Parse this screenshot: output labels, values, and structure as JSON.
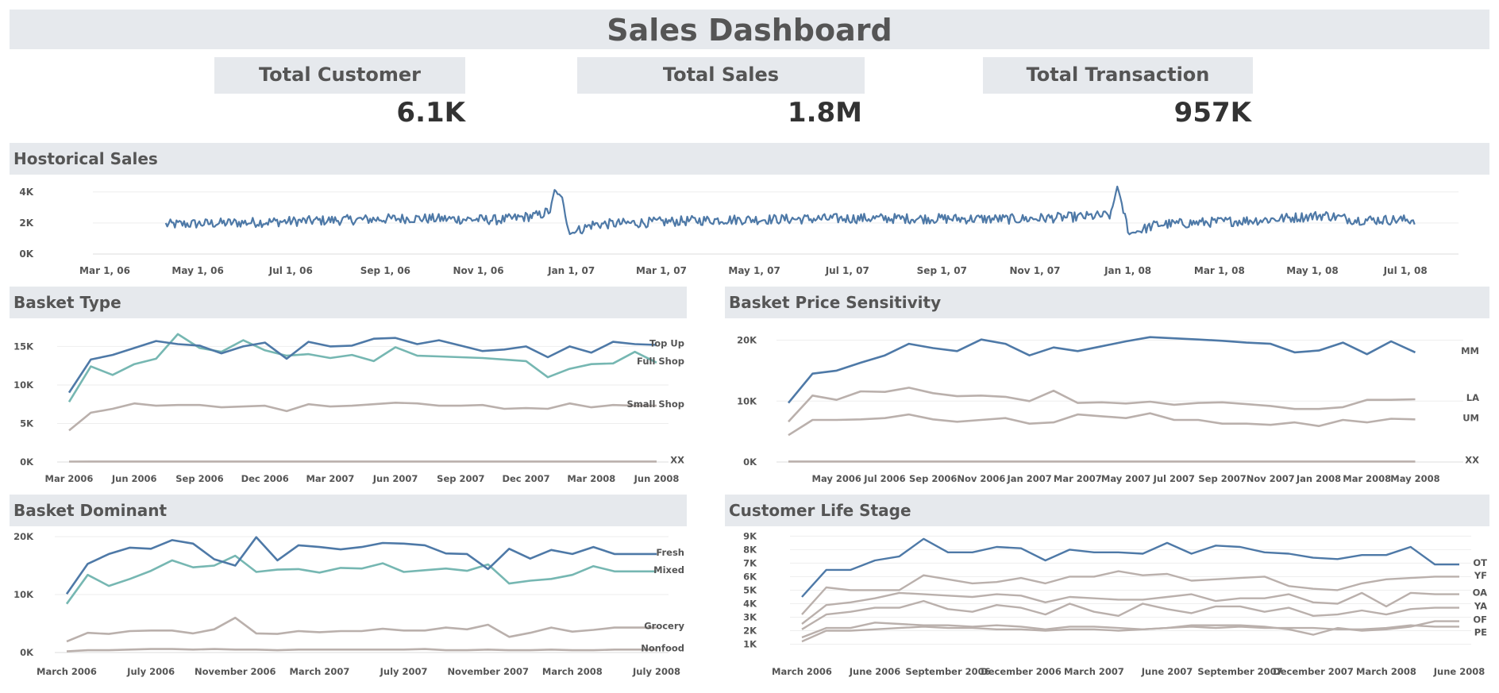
{
  "page": {
    "title": "Sales Dashboard"
  },
  "kpis": [
    {
      "label": "Total Customer",
      "value": "6.1K"
    },
    {
      "label": "Total Sales",
      "value": "1.8M"
    },
    {
      "label": "Total Transaction",
      "value": "957K"
    }
  ],
  "colors": {
    "blue": "#4e79a7",
    "teal": "#76b7b2",
    "grey": "#bab0ac",
    "band": "#e6e9ed"
  },
  "chart_data": [
    {
      "id": "historical",
      "type": "line",
      "title": "Hostorical Sales",
      "ylim": [
        0,
        4500
      ],
      "y_ticks": [
        {
          "v": 4000,
          "label": "4K"
        },
        {
          "v": 2000,
          "label": "2K"
        },
        {
          "v": 0,
          "label": "0K"
        }
      ],
      "x_ticks": [
        {
          "i": 0,
          "label": "Mar 1, 06"
        },
        {
          "i": 61,
          "label": "May 1, 06"
        },
        {
          "i": 122,
          "label": "Jul 1, 06"
        },
        {
          "i": 184,
          "label": "Sep 1, 06"
        },
        {
          "i": 245,
          "label": "Nov 1, 06"
        },
        {
          "i": 306,
          "label": "Jan 1, 07"
        },
        {
          "i": 365,
          "label": "Mar 1, 07"
        },
        {
          "i": 426,
          "label": "May 1, 07"
        },
        {
          "i": 487,
          "label": "Jul 1, 07"
        },
        {
          "i": 549,
          "label": "Sep 1, 07"
        },
        {
          "i": 610,
          "label": "Nov 1, 07"
        },
        {
          "i": 671,
          "label": "Jan 1, 08"
        },
        {
          "i": 731,
          "label": "Mar 1, 08"
        },
        {
          "i": 792,
          "label": "May 1, 08"
        },
        {
          "i": 853,
          "label": "Jul 1, 08"
        }
      ],
      "x_range": [
        0,
        880
      ],
      "series": [
        {
          "name": "Sales",
          "color": "#4e79a7",
          "start": 40,
          "count": 820,
          "keypoints": [
            [
              40,
              1900
            ],
            [
              120,
              2100
            ],
            [
              200,
              2300
            ],
            [
              260,
              2200
            ],
            [
              285,
              2500
            ],
            [
              292,
              2800
            ],
            [
              295,
              4100
            ],
            [
              300,
              3600
            ],
            [
              305,
              1300
            ],
            [
              320,
              1900
            ],
            [
              400,
              2200
            ],
            [
              500,
              2300
            ],
            [
              600,
              2250
            ],
            [
              640,
              2400
            ],
            [
              660,
              2500
            ],
            [
              664,
              4400
            ],
            [
              668,
              2800
            ],
            [
              672,
              1300
            ],
            [
              690,
              1900
            ],
            [
              760,
              2200
            ],
            [
              800,
              2500
            ],
            [
              820,
              2200
            ],
            [
              860,
              2200
            ]
          ]
        }
      ]
    },
    {
      "id": "basket-type",
      "type": "line",
      "title": "Basket Type",
      "ylim": [
        0,
        17000
      ],
      "y_ticks": [
        {
          "v": 15000,
          "label": "15K"
        },
        {
          "v": 10000,
          "label": "10K"
        },
        {
          "v": 5000,
          "label": "5K"
        },
        {
          "v": 0,
          "label": "0K"
        }
      ],
      "x_ticks": [
        {
          "i": 0,
          "label": "Mar 2006"
        },
        {
          "i": 3,
          "label": "Jun 2006"
        },
        {
          "i": 6,
          "label": "Sep 2006"
        },
        {
          "i": 9,
          "label": "Dec 2006"
        },
        {
          "i": 12,
          "label": "Mar 2007"
        },
        {
          "i": 15,
          "label": "Jun 2007"
        },
        {
          "i": 18,
          "label": "Sep 2007"
        },
        {
          "i": 21,
          "label": "Dec 2007"
        },
        {
          "i": 24,
          "label": "Mar 2008"
        },
        {
          "i": 27,
          "label": "Jun 2008"
        }
      ],
      "x_range": [
        0,
        27
      ],
      "series": [
        {
          "name": "Top Up",
          "color": "#4e79a7",
          "values": [
            9000,
            13300,
            13900,
            14800,
            15700,
            15300,
            15100,
            14100,
            15000,
            15500,
            13400,
            15600,
            15000,
            15100,
            16000,
            16100,
            15300,
            15800,
            15100,
            14400,
            14600,
            15000,
            13600,
            15000,
            14200,
            15600,
            15300,
            15200
          ]
        },
        {
          "name": "Full Shop",
          "color": "#76b7b2",
          "values": [
            7800,
            12400,
            11300,
            12700,
            13400,
            16600,
            14800,
            14300,
            15800,
            14500,
            13800,
            14000,
            13500,
            13900,
            13100,
            14900,
            13800,
            13700,
            13600,
            13500,
            13300,
            13100,
            11000,
            12100,
            12700,
            12800,
            14300,
            12900
          ]
        },
        {
          "name": "Small Shop",
          "color": "#bab0ac",
          "values": [
            4100,
            6400,
            6900,
            7600,
            7300,
            7400,
            7400,
            7100,
            7200,
            7300,
            6600,
            7500,
            7200,
            7300,
            7500,
            7700,
            7600,
            7300,
            7300,
            7400,
            6900,
            7000,
            6900,
            7600,
            7100,
            7400,
            7300,
            7300
          ]
        },
        {
          "name": "XX",
          "color": "#bab0ac",
          "values": [
            50,
            60,
            60,
            60,
            60,
            60,
            60,
            60,
            60,
            60,
            60,
            60,
            60,
            60,
            60,
            60,
            60,
            60,
            60,
            60,
            60,
            60,
            60,
            60,
            60,
            60,
            60,
            60
          ]
        }
      ]
    },
    {
      "id": "price-sensitivity",
      "type": "line",
      "title": "Basket Price Sensitivity",
      "ylim": [
        0,
        21500
      ],
      "y_ticks": [
        {
          "v": 20000,
          "label": "20K"
        },
        {
          "v": 10000,
          "label": "10K"
        },
        {
          "v": 0,
          "label": "0K"
        }
      ],
      "x_ticks": [
        {
          "i": 2,
          "label": "May 2006"
        },
        {
          "i": 4,
          "label": "Jul 2006"
        },
        {
          "i": 6,
          "label": "Sep 2006"
        },
        {
          "i": 8,
          "label": "Nov 2006"
        },
        {
          "i": 10,
          "label": "Jan 2007"
        },
        {
          "i": 12,
          "label": "Mar 2007"
        },
        {
          "i": 14,
          "label": "May 2007"
        },
        {
          "i": 16,
          "label": "Jul 2007"
        },
        {
          "i": 18,
          "label": "Sep 2007"
        },
        {
          "i": 20,
          "label": "Nov 2007"
        },
        {
          "i": 22,
          "label": "Jan 2008"
        },
        {
          "i": 24,
          "label": "Mar 2008"
        },
        {
          "i": 26,
          "label": "May 2008"
        }
      ],
      "x_range": [
        0,
        27.5
      ],
      "series": [
        {
          "name": "MM",
          "color": "#4e79a7",
          "values": [
            9700,
            14500,
            15000,
            16300,
            17500,
            19400,
            18700,
            18200,
            20100,
            19400,
            17500,
            18800,
            18200,
            19000,
            19800,
            20500,
            20300,
            20100,
            19900,
            19600,
            19400,
            18000,
            18300,
            19600,
            17700,
            19800,
            18000
          ]
        },
        {
          "name": "LA",
          "color": "#bab0ac",
          "values": [
            6600,
            10900,
            10200,
            11600,
            11500,
            12200,
            11300,
            10800,
            10900,
            10700,
            10000,
            11700,
            9700,
            9800,
            9600,
            9900,
            9400,
            9700,
            9800,
            9500,
            9200,
            8700,
            8700,
            9000,
            10200,
            10200,
            10300
          ]
        },
        {
          "name": "UM",
          "color": "#bab0ac",
          "values": [
            4400,
            6900,
            6900,
            7000,
            7200,
            7800,
            7000,
            6600,
            6900,
            7200,
            6300,
            6500,
            7800,
            7500,
            7200,
            8000,
            6900,
            6900,
            6300,
            6300,
            6100,
            6500,
            5900,
            6900,
            6500,
            7100,
            7000
          ]
        },
        {
          "name": "XX",
          "color": "#bab0ac",
          "values": [
            80,
            80,
            80,
            80,
            80,
            80,
            80,
            80,
            80,
            80,
            80,
            80,
            80,
            80,
            80,
            80,
            80,
            80,
            80,
            80,
            80,
            80,
            80,
            80,
            80,
            80,
            80
          ]
        }
      ]
    },
    {
      "id": "basket-dominant",
      "type": "line",
      "title": "Basket Dominant",
      "ylim": [
        0,
        20000
      ],
      "y_ticks": [
        {
          "v": 20000,
          "label": "20K"
        },
        {
          "v": 10000,
          "label": "10K"
        },
        {
          "v": 0,
          "label": "0K"
        }
      ],
      "x_ticks": [
        {
          "i": 0,
          "label": "March 2006"
        },
        {
          "i": 4,
          "label": "July 2006"
        },
        {
          "i": 8,
          "label": "November 2006"
        },
        {
          "i": 12,
          "label": "March 2007"
        },
        {
          "i": 16,
          "label": "July 2007"
        },
        {
          "i": 20,
          "label": "November 2007"
        },
        {
          "i": 24,
          "label": "March 2008"
        },
        {
          "i": 28,
          "label": "July 2008"
        }
      ],
      "x_range": [
        0,
        28
      ],
      "series": [
        {
          "name": "Fresh",
          "color": "#4e79a7",
          "values": [
            10100,
            15300,
            17000,
            18100,
            17900,
            19400,
            18800,
            16100,
            15000,
            19900,
            15900,
            18500,
            18200,
            17800,
            18200,
            18900,
            18800,
            18500,
            17100,
            17000,
            14400,
            17900,
            16200,
            17700,
            17000,
            18200,
            17000,
            17000,
            17000
          ]
        },
        {
          "name": "Mixed",
          "color": "#76b7b2",
          "values": [
            8400,
            13400,
            11500,
            12700,
            14100,
            15900,
            14700,
            15000,
            16700,
            13900,
            14300,
            14400,
            13800,
            14600,
            14500,
            15400,
            13900,
            14200,
            14500,
            14100,
            15200,
            11900,
            12400,
            12700,
            13400,
            14900,
            14000,
            14000,
            14000
          ]
        },
        {
          "name": "Grocery",
          "color": "#bab0ac",
          "values": [
            1900,
            3400,
            3200,
            3700,
            3800,
            3800,
            3300,
            4000,
            6000,
            3300,
            3200,
            3700,
            3500,
            3700,
            3700,
            4100,
            3800,
            3800,
            4300,
            4000,
            4800,
            2700,
            3400,
            4300,
            3600,
            3900,
            4300,
            4300,
            4300
          ]
        },
        {
          "name": "Nonfood",
          "color": "#bab0ac",
          "values": [
            200,
            400,
            400,
            500,
            600,
            600,
            500,
            600,
            500,
            500,
            400,
            500,
            500,
            500,
            500,
            500,
            500,
            600,
            400,
            400,
            500,
            400,
            400,
            500,
            400,
            400,
            500,
            500,
            500
          ]
        }
      ]
    },
    {
      "id": "life-stage",
      "type": "line",
      "title": "Customer Life Stage",
      "ylim": [
        500,
        9200
      ],
      "y_ticks": [
        {
          "v": 9000,
          "label": "9K"
        },
        {
          "v": 8000,
          "label": "8K"
        },
        {
          "v": 7000,
          "label": "7K"
        },
        {
          "v": 6000,
          "label": "6K"
        },
        {
          "v": 5000,
          "label": "5K"
        },
        {
          "v": 4000,
          "label": "4K"
        },
        {
          "v": 3000,
          "label": "3K"
        },
        {
          "v": 2000,
          "label": "2K"
        },
        {
          "v": 1000,
          "label": "1K"
        }
      ],
      "x_ticks": [
        {
          "i": 0,
          "label": "March 2006"
        },
        {
          "i": 3,
          "label": "June 2006"
        },
        {
          "i": 6,
          "label": "September 2006"
        },
        {
          "i": 9,
          "label": "December 2006"
        },
        {
          "i": 12,
          "label": "March 2007"
        },
        {
          "i": 15,
          "label": "June 2007"
        },
        {
          "i": 18,
          "label": "September 2007"
        },
        {
          "i": 21,
          "label": "December 2007"
        },
        {
          "i": 24,
          "label": "March 2008"
        },
        {
          "i": 27,
          "label": "June 2008"
        }
      ],
      "x_range": [
        0,
        27
      ],
      "series": [
        {
          "name": "OT",
          "color": "#4e79a7",
          "values": [
            4500,
            6500,
            6500,
            7200,
            7500,
            8800,
            7800,
            7800,
            8200,
            8100,
            7200,
            8000,
            7800,
            7800,
            7700,
            8500,
            7700,
            8300,
            8200,
            7800,
            7700,
            7400,
            7300,
            7600,
            7600,
            8200,
            6900,
            6900
          ]
        },
        {
          "name": "YF",
          "color": "#bab0ac",
          "values": [
            3200,
            5200,
            5000,
            5000,
            5000,
            6100,
            5800,
            5500,
            5600,
            5900,
            5500,
            6000,
            6000,
            6400,
            6100,
            6200,
            5700,
            5800,
            5900,
            6000,
            5300,
            5100,
            5000,
            5500,
            5800,
            5900,
            6000,
            6000
          ]
        },
        {
          "name": "OA",
          "color": "#bab0ac",
          "values": [
            2500,
            3900,
            4100,
            4400,
            4800,
            4700,
            4600,
            4500,
            4700,
            4600,
            4100,
            4500,
            4400,
            4300,
            4300,
            4500,
            4700,
            4200,
            4400,
            4400,
            4700,
            4100,
            4000,
            4800,
            3800,
            4800,
            4700,
            4700
          ]
        },
        {
          "name": "YA",
          "color": "#bab0ac",
          "values": [
            2100,
            3200,
            3400,
            3700,
            3700,
            4200,
            3600,
            3400,
            3900,
            3700,
            3200,
            4000,
            3400,
            3100,
            4000,
            3600,
            3300,
            3800,
            3800,
            3400,
            3700,
            3100,
            3200,
            3500,
            3200,
            3600,
            3700,
            3700
          ]
        },
        {
          "name": "PE",
          "color": "#bab0ac",
          "values": [
            1500,
            2200,
            2200,
            2600,
            2500,
            2400,
            2400,
            2300,
            2400,
            2300,
            2100,
            2300,
            2300,
            2200,
            2100,
            2200,
            2300,
            2200,
            2300,
            2200,
            2200,
            2200,
            2100,
            2100,
            2200,
            2400,
            2300,
            2300
          ]
        },
        {
          "name": "OF",
          "color": "#bab0ac",
          "values": [
            1200,
            2000,
            2000,
            2100,
            2200,
            2300,
            2200,
            2200,
            2100,
            2100,
            2000,
            2100,
            2100,
            2000,
            2100,
            2200,
            2400,
            2400,
            2400,
            2300,
            2100,
            1700,
            2200,
            2000,
            2100,
            2300,
            2700,
            2700
          ]
        }
      ]
    }
  ]
}
